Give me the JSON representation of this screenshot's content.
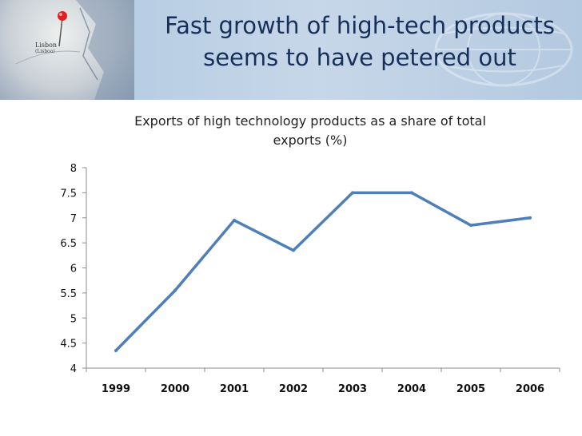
{
  "slide": {
    "title_line1": "Fast growth of high-tech products",
    "title_line2": "seems to have petered out",
    "map_label": "Lisbon",
    "map_sublabel": "(Lisboa)"
  },
  "colors": {
    "line": "#4f7fb8",
    "title": "#16305a"
  },
  "chart_data": {
    "type": "line",
    "title_line1": "Exports of high technology products as a share of total",
    "title_line2": "exports (%)",
    "categories": [
      "1999",
      "2000",
      "2001",
      "2002",
      "2003",
      "2004",
      "2005",
      "2006"
    ],
    "values": [
      4.35,
      5.55,
      6.95,
      6.35,
      7.5,
      7.5,
      6.85,
      7.0
    ],
    "ylim": [
      4,
      8
    ],
    "yticks": [
      "4",
      "4.5",
      "5",
      "5.5",
      "6",
      "6.5",
      "7",
      "7.5",
      "8"
    ],
    "grid": false,
    "legend": "none"
  }
}
